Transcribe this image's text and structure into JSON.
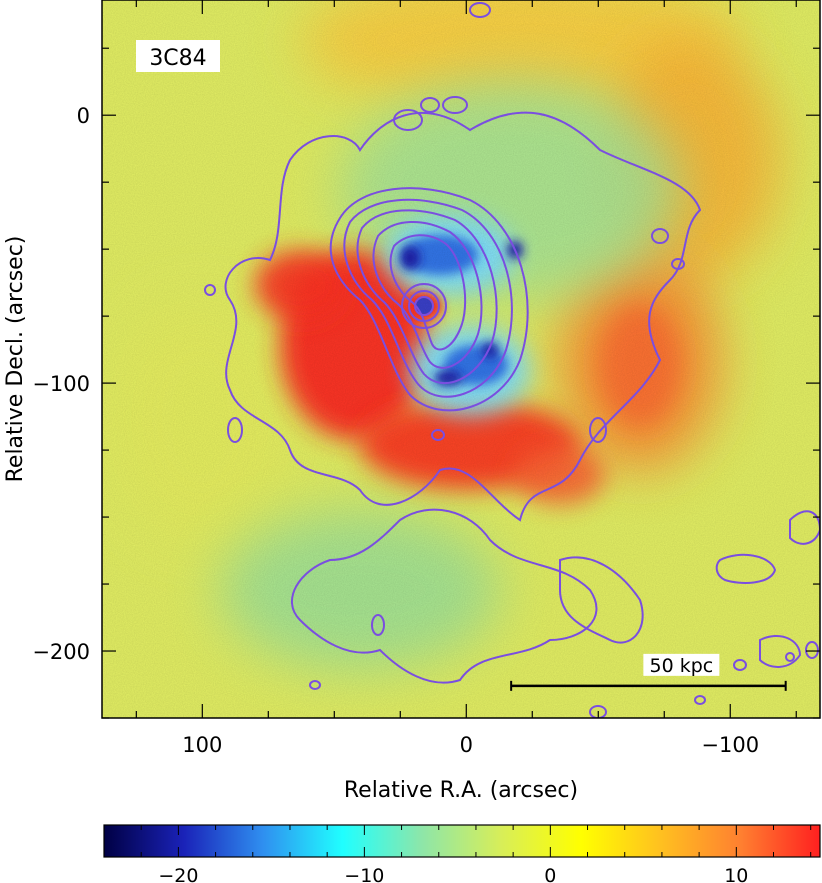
{
  "chart_data": {
    "type": "heatmap",
    "title": "3C84",
    "xlabel": "Relative R.A. (arcsec)",
    "ylabel": "Relative Decl. (arcsec)",
    "xlim": [
      138,
      -134
    ],
    "ylim": [
      -225,
      43
    ],
    "x_ticks": [
      100,
      0,
      -100
    ],
    "x_tick_labels": [
      "100",
      "0",
      "−100"
    ],
    "y_ticks": [
      0,
      -100,
      -200
    ],
    "y_tick_labels": [
      "0",
      "−100",
      "−200"
    ],
    "scale_bar": {
      "label": "50 kpc",
      "ra_start": -17,
      "ra_end": -121,
      "dec": -213
    },
    "colorbar": {
      "range": [
        -24,
        14.5
      ],
      "ticks": [
        -20,
        -10,
        0,
        10
      ],
      "tick_labels": [
        "−20",
        "−10",
        "0",
        "10"
      ],
      "colors": [
        "#000044",
        "#1a22b8",
        "#2f8ff0",
        "#20ffff",
        "#8ee6a8",
        "#d8ee58",
        "#ffff00",
        "#ffc020",
        "#ff8030",
        "#ff2020"
      ]
    },
    "contour_color": "#7a4ee0",
    "background_color": "#e4f064",
    "regions": [
      {
        "name": "cool central cavity (north)",
        "ra": 18,
        "dec": -53,
        "value": -14
      },
      {
        "name": "cool central cavity (south)",
        "ra": -8,
        "dec": -92,
        "value": -13
      },
      {
        "name": "hot eastern arc",
        "ra": 45,
        "dec": -97,
        "value": 12
      },
      {
        "name": "hot southern arc",
        "ra": -25,
        "dec": -125,
        "value": 11
      },
      {
        "name": "western rim",
        "ra": -75,
        "dec": -80,
        "value": 6
      },
      {
        "name": "faint north-west shell",
        "ra": -35,
        "dec": -25,
        "value": -4
      },
      {
        "name": "south-eastern outflow",
        "ra": 45,
        "dec": -175,
        "value": -3
      }
    ]
  }
}
